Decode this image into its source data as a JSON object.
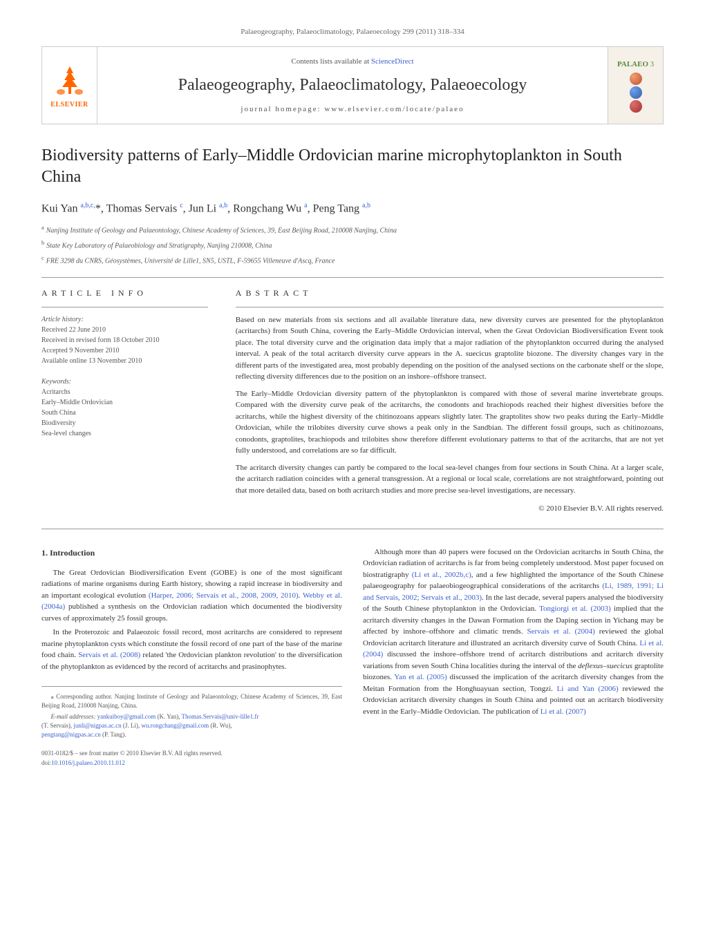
{
  "journal_ref": "Palaeogeography, Palaeoclimatology, Palaeoecology 299 (2011) 318–334",
  "header": {
    "contents_prefix": "Contents lists available at ",
    "contents_link": "ScienceDirect",
    "journal_name": "Palaeogeography, Palaeoclimatology, Palaeoecology",
    "homepage": "journal homepage: www.elsevier.com/locate/palaeo",
    "elsevier": "ELSEVIER",
    "palaeo_label": "PALAEO",
    "palaeo_num": "3"
  },
  "title": "Biodiversity patterns of Early–Middle Ordovician marine microphytoplankton in South China",
  "authors_html": "Kui Yan <sup>a,b,c,</sup><span class='corr'>*</span>, Thomas Servais <sup>c</sup>, Jun Li <sup>a,b</sup>, Rongchang Wu <sup>a</sup>, Peng Tang <sup>a,b</sup>",
  "affiliations": {
    "a": "Nanjing Institute of Geology and Palaeontology, Chinese Academy of Sciences, 39, East Beijing Road, 210008 Nanjing, China",
    "b": "State Key Laboratory of Palaeobiology and Stratigraphy, Nanjing 210008, China",
    "c": "FRE 3298 du CNRS, Géosystèmes, Université de Lille1, SN5, USTL, F-59655 Villeneuve d'Ascq, France"
  },
  "info": {
    "header": "article info",
    "history_label": "Article history:",
    "received": "Received 22 June 2010",
    "revised": "Received in revised form 18 October 2010",
    "accepted": "Accepted 9 November 2010",
    "online": "Available online 13 November 2010",
    "keywords_label": "Keywords:",
    "keywords": [
      "Acritarchs",
      "Early–Middle Ordovician",
      "South China",
      "Biodiversity",
      "Sea-level changes"
    ]
  },
  "abstract": {
    "header": "abstract",
    "p1": "Based on new materials from six sections and all available literature data, new diversity curves are presented for the phytoplankton (acritarchs) from South China, covering the Early–Middle Ordovician interval, when the Great Ordovician Biodiversification Event took place. The total diversity curve and the origination data imply that a major radiation of the phytoplankton occurred during the analysed interval. A peak of the total acritarch diversity curve appears in the A. suecicus graptolite biozone. The diversity changes vary in the different parts of the investigated area, most probably depending on the position of the analysed sections on the carbonate shelf or the slope, reflecting diversity differences due to the position on an inshore–offshore transect.",
    "p2": "The Early–Middle Ordovician diversity pattern of the phytoplankton is compared with those of several marine invertebrate groups. Compared with the diversity curve peak of the acritarchs, the conodonts and brachiopods reached their highest diversities before the acritarchs, while the highest diversity of the chitinozoans appears slightly later. The graptolites show two peaks during the Early–Middle Ordovician, while the trilobites diversity curve shows a peak only in the Sandbian. The different fossil groups, such as chitinozoans, conodonts, graptolites, brachiopods and trilobites show therefore different evolutionary patterns to that of the acritarchs, that are not yet fully understood, and correlations are so far difficult.",
    "p3": "The acritarch diversity changes can partly be compared to the local sea-level changes from four sections in South China. At a larger scale, the acritarch radiation coincides with a general transgression. At a regional or local scale, correlations are not straightforward, pointing out that more detailed data, based on both acritarch studies and more precise sea-level investigations, are necessary.",
    "copyright": "© 2010 Elsevier B.V. All rights reserved."
  },
  "intro": {
    "heading": "1. Introduction",
    "left_p1_a": "The Great Ordovician Biodiversification Event (GOBE) is one of the most significant radiations of marine organisms during Earth history, showing a rapid increase in biodiversity and an important ecological evolution ",
    "left_p1_link1": "(Harper, 2006; Servais et al., 2008, 2009, 2010)",
    "left_p1_b": ". ",
    "left_p1_link2": "Webby et al. (2004a)",
    "left_p1_c": " published a synthesis on the Ordovician radiation which documented the biodiversity curves of approximately 25 fossil groups.",
    "left_p2_a": "In the Proterozoic and Palaeozoic fossil record, most acritarchs are considered to represent marine phytoplankton cysts which constitute the fossil record of one part of the base of the marine food chain. ",
    "left_p2_link1": "Servais et al. (2008)",
    "left_p2_b": " related 'the Ordovician plankton revolution' to the diversification of the phytoplankton as evidenced by the record of acritarchs and prasinophytes.",
    "right_p1_a": "Although more than 40 papers were focused on the Ordovician acritarchs in South China, the Ordovician radiation of acritarchs is far from being completely understood. Most paper focused on biostratigraphy ",
    "right_p1_link1": "(Li et al., 2002b,c)",
    "right_p1_b": ", and a few highlighted the importance of the South Chinese palaeogeography for palaeobiogeographical considerations of the acritarchs ",
    "right_p1_link2": "(Li, 1989, 1991; Li and Servais, 2002; Servais et al., 2003)",
    "right_p1_c": ". In the last decade, several papers analysed the biodiversity of the South Chinese phytoplankton in the Ordovician. ",
    "right_p1_link3": "Tongiorgi et al. (2003)",
    "right_p1_d": " implied that the acritarch diversity changes in the Dawan Formation from the Daping section in Yichang may be affected by inshore–offshore and climatic trends. ",
    "right_p1_link4": "Servais et al. (2004)",
    "right_p1_e": " reviewed the global Ordovician acritarch literature and illustrated an acritarch diversity curve of South China. ",
    "right_p1_link5": "Li et al. (2004)",
    "right_p1_f": " discussed the inshore–offshore trend of acritarch distributions and acritarch diversity variations from seven South China localities during the interval of the ",
    "right_p1_ital": "deflexus–suecicus",
    "right_p1_g": " graptolite biozones. ",
    "right_p1_link6": "Yan et al. (2005)",
    "right_p1_h": " discussed the implication of the acritarch diversity changes from the Meitan Formation from the Honghuayuan section, Tongzi. ",
    "right_p1_link7": "Li and Yan (2006)",
    "right_p1_i": " reviewed the Ordovician acritarch diversity changes in South China and pointed out an acritarch biodiversity event in the Early–Middle Ordovician. The publication of ",
    "right_p1_link8": "Li et al. (2007)"
  },
  "footer": {
    "corr_label": "⁎ Corresponding author. Nanjing Institute of Geology and Palaeontology, Chinese Academy of Sciences, 39, East Beijing Road, 210008 Nanjing, China.",
    "email_label": "E-mail addresses: ",
    "email1": "yankuiboy@gmail.com",
    "email1_who": " (K. Yan), ",
    "email2": "Thomas.Servais@univ-lille1.fr",
    "email2_who": " (T. Servais), ",
    "email3": "junli@nigpas.ac.cn",
    "email3_who": " (J. Li), ",
    "email4": "wu.rongchang@gmail.com",
    "email4_who": " (R. Wu), ",
    "email5": "pengtang@nigpas.ac.cn",
    "email5_who": " (P. Tang).",
    "issn": "0031-0182/$ – see front matter © 2010 Elsevier B.V. All rights reserved.",
    "doi_prefix": "doi:",
    "doi": "10.1016/j.palaeo.2010.11.012"
  },
  "colors": {
    "link": "#3a5fcd",
    "elsevier_orange": "#ff6600",
    "palaeo_green": "#5b8a3a",
    "globe1": "#c05030",
    "globe2": "#3060a0",
    "globe3": "#a03030"
  }
}
